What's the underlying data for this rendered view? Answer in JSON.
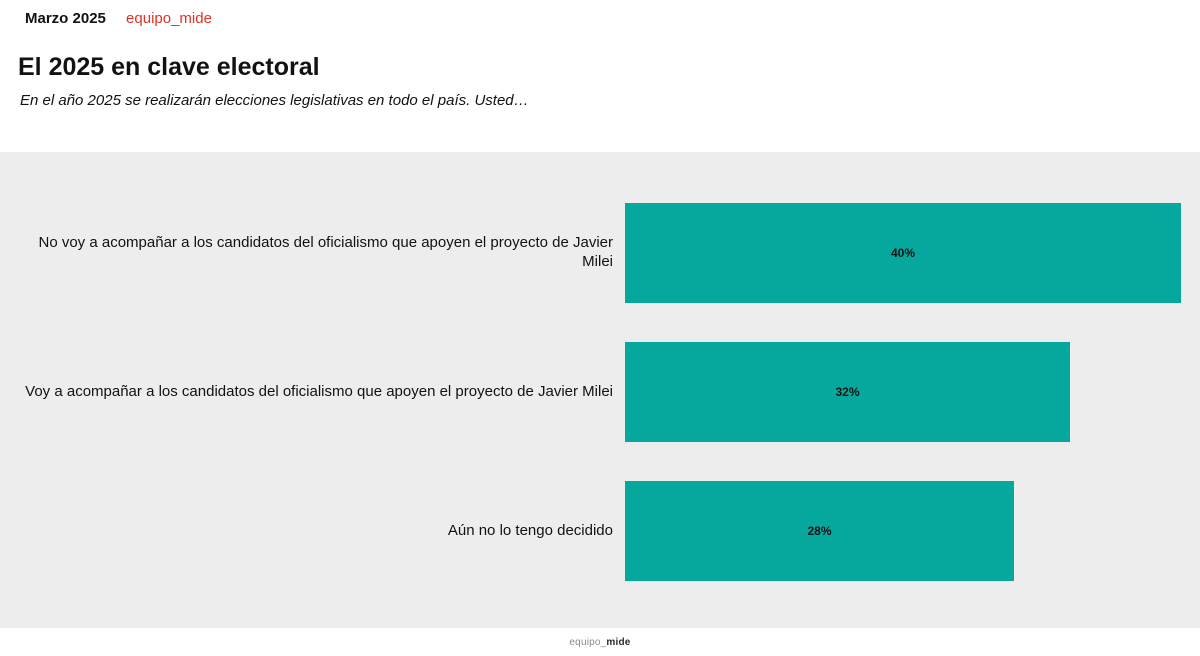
{
  "header": {
    "date": "Marzo 2025",
    "brand": "equipo_mide",
    "title": "El 2025 en clave electoral",
    "subtitle": "En el año 2025 se realizarán elecciones legislativas en todo el país. Usted…"
  },
  "chart_data": {
    "type": "bar",
    "orientation": "horizontal",
    "categories": [
      "No voy a acompañar a los candidatos del oficialismo que apoyen el proyecto de Javier Milei",
      "Voy a acompañar a los candidatos del oficialismo que apoyen el proyecto de Javier Milei",
      "Aún no lo tengo decidido"
    ],
    "values": [
      40,
      32,
      28
    ],
    "value_labels": [
      "40%",
      "32%",
      "28%"
    ],
    "unit": "%",
    "xlim": [
      0,
      40
    ],
    "grid": false,
    "legend": false,
    "bar_color": "#06a89e",
    "panel_background": "#ededed"
  },
  "footer": {
    "brand_prefix": "equipo_",
    "brand_suffix": "mide"
  },
  "colors": {
    "accent_red": "#e03127",
    "bar_teal": "#06a89e",
    "panel_gray": "#ededed",
    "text_black": "#121212"
  }
}
